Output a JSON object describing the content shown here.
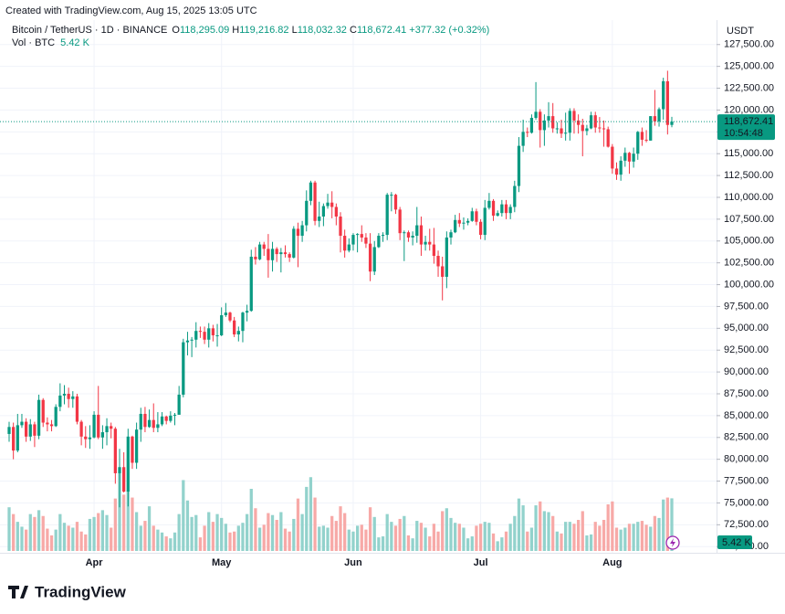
{
  "header": {
    "created": "Created with TradingView.com, Aug 15, 2025 13:05 UTC",
    "symbol": "Bitcoin / TetherUS · 1D · BINANCE",
    "o_label": "O",
    "o": "118,295.09",
    "h_label": "H",
    "h": "119,216.82",
    "l_label": "L",
    "l": "118,032.32",
    "c_label": "C",
    "c": "118,672.41",
    "change": "+377.32 (+0.32%)",
    "vol_label": "Vol · BTC",
    "currency": "USDT",
    "countdown": "10:54:48",
    "logo": "TradingView"
  },
  "chart_data": {
    "type": "candlestick",
    "up_color": "#089981",
    "down_color": "#f23645",
    "volume_up_color": "#92d2cc",
    "volume_down_color": "#f7a9a7",
    "grid": true,
    "last_price_label": "118,672.41",
    "volume_last_label": "5.42 K",
    "ylim": [
      69500,
      130300
    ],
    "yticks": [
      {
        "value": 70000,
        "label": "70,000.00"
      },
      {
        "value": 72500,
        "label": "72,500.00"
      },
      {
        "value": 75000,
        "label": "75,000.00"
      },
      {
        "value": 77500,
        "label": "77,500.00"
      },
      {
        "value": 80000,
        "label": "80,000.00"
      },
      {
        "value": 82500,
        "label": "82,500.00"
      },
      {
        "value": 85000,
        "label": "85,000.00"
      },
      {
        "value": 87500,
        "label": "87,500.00"
      },
      {
        "value": 90000,
        "label": "90,000.00"
      },
      {
        "value": 92500,
        "label": "92,500.00"
      },
      {
        "value": 95000,
        "label": "95,000.00"
      },
      {
        "value": 97500,
        "label": "97,500.00"
      },
      {
        "value": 100000,
        "label": "100,000.00"
      },
      {
        "value": 102500,
        "label": "102,500.00"
      },
      {
        "value": 105000,
        "label": "105,000.00"
      },
      {
        "value": 107500,
        "label": "107,500.00"
      },
      {
        "value": 110000,
        "label": "110,000.00"
      },
      {
        "value": 112500,
        "label": "112,500.00"
      },
      {
        "value": 115000,
        "label": "115,000.00"
      },
      {
        "value": 117500,
        "label": "117,500.00"
      },
      {
        "value": 120000,
        "label": "120,000.00"
      },
      {
        "value": 122500,
        "label": "122,500.00"
      },
      {
        "value": 125000,
        "label": "125,000.00"
      },
      {
        "value": 127500,
        "label": "127,500.00"
      }
    ],
    "categories": [
      null,
      null,
      null,
      null,
      null,
      null,
      null,
      null,
      null,
      null,
      null,
      null,
      null,
      null,
      null,
      null,
      null,
      null,
      null,
      null,
      "Apr",
      null,
      null,
      null,
      null,
      null,
      null,
      null,
      null,
      null,
      null,
      null,
      null,
      null,
      null,
      null,
      null,
      null,
      null,
      null,
      null,
      null,
      null,
      null,
      null,
      null,
      null,
      null,
      null,
      null,
      "May",
      null,
      null,
      null,
      null,
      null,
      null,
      null,
      null,
      null,
      null,
      null,
      null,
      null,
      null,
      null,
      null,
      null,
      null,
      null,
      null,
      null,
      null,
      null,
      null,
      null,
      null,
      null,
      null,
      null,
      null,
      "Jun",
      null,
      null,
      null,
      null,
      null,
      null,
      null,
      null,
      null,
      null,
      null,
      null,
      null,
      null,
      null,
      null,
      null,
      null,
      null,
      null,
      null,
      null,
      null,
      null,
      null,
      null,
      null,
      null,
      null,
      "Jul",
      null,
      null,
      null,
      null,
      null,
      null,
      null,
      null,
      null,
      null,
      null,
      null,
      null,
      null,
      null,
      null,
      null,
      null,
      null,
      null,
      null,
      null,
      null,
      null,
      null,
      null,
      null,
      null,
      null,
      null,
      "Aug",
      null,
      null,
      null,
      null,
      null,
      null,
      null,
      null,
      null,
      null,
      null,
      null,
      null,
      null
    ],
    "open": [
      82900,
      83700,
      81000,
      83900,
      84300,
      82600,
      84000,
      82700,
      86800,
      84200,
      84000,
      83800,
      86000,
      87300,
      87500,
      86900,
      87200,
      84300,
      82600,
      82300,
      82500,
      85100,
      82500,
      83100,
      83800,
      83500,
      78400,
      79100,
      76300,
      82600,
      79600,
      83400,
      85200,
      83700,
      84500,
      83600,
      84000,
      84900,
      84400,
      85000,
      85100,
      87400,
      93400,
      93600,
      93700,
      94700,
      94600,
      93700,
      95000,
      94200,
      94200,
      96500,
      96800,
      95900,
      94300,
      94700,
      96800,
      97000,
      103200,
      102900,
      104600,
      104100,
      102800,
      104100,
      103500,
      103700,
      103500,
      103100,
      106400,
      105600,
      106800,
      109600,
      111700,
      107300,
      107800,
      109000,
      109400,
      108900,
      107800,
      105600,
      103900,
      104600,
      105700,
      105800,
      105400,
      104700,
      101500,
      104300,
      105600,
      105700,
      110300,
      110300,
      108600,
      105900,
      106000,
      105400,
      105600,
      106800,
      104600,
      104900,
      104600,
      103300,
      102100,
      100900,
      105400,
      106000,
      107400,
      107000,
      107100,
      107300,
      108400,
      107200,
      105700,
      108800,
      109600,
      107900,
      108200,
      109200,
      108200,
      108900,
      111300,
      115900,
      117500,
      117400,
      119100,
      119800,
      117700,
      118800,
      119300,
      117900,
      117900,
      117300,
      117400,
      119900,
      118800,
      118300,
      117600,
      117900,
      119400,
      118000,
      117900,
      117800,
      115800,
      113300,
      112600,
      114200,
      115100,
      114100,
      115000,
      117500,
      116600,
      116500,
      119300,
      118700,
      120100,
      123300,
      118295.09
    ],
    "high": [
      84300,
      84200,
      85200,
      85200,
      84700,
      84600,
      84300,
      87400,
      87000,
      84800,
      84500,
      86300,
      88700,
      88500,
      88200,
      87800,
      87500,
      84500,
      83800,
      83900,
      85500,
      88400,
      83900,
      84700,
      84200,
      83700,
      81200,
      80800,
      83500,
      82700,
      84200,
      85900,
      86000,
      85700,
      86400,
      85400,
      85400,
      85000,
      85500,
      85300,
      88400,
      93800,
      94600,
      94000,
      95700,
      95200,
      95200,
      95600,
      95400,
      95500,
      97400,
      97900,
      96900,
      96300,
      95200,
      96900,
      97700,
      104000,
      104300,
      104900,
      104900,
      105800,
      104900,
      104300,
      104200,
      104500,
      103700,
      106700,
      107100,
      107300,
      110800,
      111900,
      111900,
      109500,
      109300,
      110400,
      110700,
      109300,
      108300,
      106300,
      105300,
      105900,
      105900,
      106800,
      105900,
      105900,
      105000,
      105900,
      106000,
      110500,
      110600,
      110400,
      108900,
      106200,
      106200,
      106100,
      108900,
      107800,
      105600,
      106400,
      106500,
      103900,
      103200,
      106100,
      106300,
      108000,
      108200,
      107700,
      107600,
      108800,
      108700,
      107500,
      109700,
      110500,
      109800,
      108500,
      109700,
      109700,
      109200,
      111900,
      116900,
      118900,
      118000,
      119500,
      123200,
      120100,
      119500,
      120900,
      120800,
      118600,
      118900,
      119700,
      120200,
      120200,
      119500,
      119000,
      118300,
      119800,
      119800,
      119200,
      118800,
      118100,
      116100,
      114000,
      114700,
      115700,
      115200,
      115700,
      117600,
      118000,
      117700,
      119300,
      122300,
      120300,
      123700,
      124500,
      119216.82
    ],
    "low": [
      82000,
      80000,
      80800,
      83600,
      82000,
      82100,
      81400,
      82300,
      83700,
      83200,
      83200,
      83700,
      85500,
      86300,
      85900,
      85900,
      84000,
      81600,
      81300,
      81200,
      82400,
      82300,
      81200,
      81600,
      82400,
      77200,
      74500,
      76200,
      74600,
      78900,
      78900,
      82000,
      83100,
      83600,
      83100,
      83100,
      83800,
      84000,
      84200,
      83900,
      85100,
      87100,
      91900,
      91700,
      92800,
      93900,
      93200,
      92800,
      93500,
      92900,
      94100,
      96300,
      95700,
      94000,
      93500,
      93400,
      95800,
      96900,
      102300,
      102800,
      103300,
      100800,
      101500,
      102600,
      101400,
      103100,
      102600,
      103000,
      102000,
      104900,
      106100,
      109100,
      106800,
      106600,
      106700,
      108700,
      107600,
      106800,
      103700,
      103100,
      103700,
      103900,
      103700,
      104900,
      104200,
      100400,
      101100,
      104200,
      104900,
      105100,
      108400,
      108100,
      105100,
      102700,
      104900,
      104500,
      104800,
      103300,
      103900,
      103900,
      102400,
      100900,
      98200,
      99600,
      104600,
      105900,
      106600,
      106300,
      106800,
      107200,
      106800,
      105200,
      105100,
      108600,
      107300,
      107800,
      107800,
      107500,
      107500,
      108300,
      110600,
      115200,
      116900,
      117300,
      118900,
      115700,
      115900,
      118000,
      117400,
      117300,
      116800,
      116500,
      116500,
      117300,
      117300,
      114700,
      117100,
      117800,
      117400,
      117400,
      115800,
      115700,
      112700,
      112000,
      111900,
      113500,
      112700,
      113400,
      114300,
      115900,
      116300,
      116500,
      118200,
      118100,
      118900,
      117200,
      118032.32
    ],
    "close": [
      83700,
      81000,
      83900,
      84300,
      82600,
      84000,
      82700,
      86800,
      84200,
      84000,
      83800,
      86000,
      87300,
      87500,
      86900,
      87200,
      84300,
      82600,
      82300,
      82500,
      85100,
      82500,
      83100,
      83800,
      83500,
      78400,
      79100,
      76300,
      82600,
      79600,
      83400,
      85200,
      83700,
      84500,
      83600,
      84000,
      84900,
      84400,
      85000,
      85100,
      87400,
      93400,
      93600,
      93700,
      94700,
      94600,
      93700,
      95000,
      94200,
      94200,
      96500,
      96800,
      95900,
      94300,
      94700,
      96800,
      97000,
      103200,
      102900,
      104600,
      104100,
      102800,
      104100,
      103500,
      103700,
      103500,
      103100,
      106400,
      105600,
      106800,
      109600,
      111700,
      107300,
      107800,
      109000,
      109400,
      108900,
      107800,
      105600,
      103900,
      104600,
      105700,
      105800,
      105400,
      104700,
      101500,
      104300,
      105600,
      105700,
      110300,
      110300,
      108600,
      105900,
      106000,
      105400,
      105600,
      106800,
      104600,
      104900,
      104600,
      103300,
      102100,
      100900,
      105400,
      106000,
      107400,
      107000,
      107100,
      107300,
      108400,
      107200,
      105700,
      108800,
      109600,
      107900,
      108200,
      109200,
      108200,
      108900,
      111300,
      115900,
      117500,
      117400,
      119100,
      119800,
      117700,
      118800,
      119300,
      117900,
      117900,
      117300,
      117400,
      119900,
      118800,
      118300,
      117600,
      117900,
      119400,
      118000,
      117900,
      117800,
      115800,
      113300,
      112600,
      114200,
      115100,
      114100,
      115000,
      117500,
      116600,
      116500,
      119300,
      118700,
      120100,
      123300,
      118295.09,
      118672.41
    ],
    "volume": [
      4.5,
      3.8,
      3.0,
      2.5,
      2.2,
      3.8,
      3.5,
      4.2,
      3.6,
      2.3,
      1.6,
      2.2,
      3.8,
      2.9,
      2.6,
      2.4,
      3.0,
      2.0,
      1.7,
      3.3,
      3.5,
      3.9,
      4.2,
      3.7,
      2.4,
      5.4,
      8.0,
      5.8,
      6.2,
      5.5,
      4.0,
      2.6,
      3.1,
      4.6,
      2.6,
      2.2,
      1.9,
      1.5,
      1.3,
      1.9,
      3.8,
      7.3,
      5.2,
      3.5,
      3.7,
      1.4,
      2.6,
      4.0,
      3.0,
      3.8,
      3.4,
      2.8,
      1.9,
      2.0,
      2.6,
      2.9,
      3.8,
      6.4,
      4.4,
      2.4,
      2.7,
      3.9,
      3.7,
      3.2,
      4.0,
      2.3,
      2.0,
      3.3,
      5.4,
      3.8,
      6.6,
      7.6,
      5.5,
      2.5,
      2.6,
      2.4,
      3.6,
      3.1,
      4.6,
      3.9,
      2.2,
      2.0,
      2.6,
      2.7,
      2.2,
      4.5,
      3.5,
      1.4,
      1.5,
      3.8,
      3.0,
      2.6,
      3.3,
      3.6,
      1.6,
      1.3,
      3.1,
      2.9,
      2.4,
      1.5,
      2.8,
      2.0,
      4.1,
      4.4,
      3.4,
      2.9,
      2.8,
      2.4,
      1.3,
      1.5,
      2.6,
      2.8,
      3.0,
      2.9,
      1.8,
      1.0,
      1.4,
      2.0,
      2.8,
      3.6,
      5.4,
      4.7,
      2.0,
      2.4,
      4.7,
      5.1,
      4.1,
      4.0,
      3.6,
      2.0,
      1.8,
      3.0,
      3.0,
      2.8,
      3.2,
      4.1,
      1.6,
      1.7,
      3.0,
      2.6,
      3.2,
      4.8,
      5.1,
      2.4,
      2.2,
      2.4,
      2.8,
      2.8,
      3.0,
      3.1,
      2.7,
      2.5,
      3.6,
      3.4,
      5.3,
      5.5,
      5.42
    ]
  }
}
